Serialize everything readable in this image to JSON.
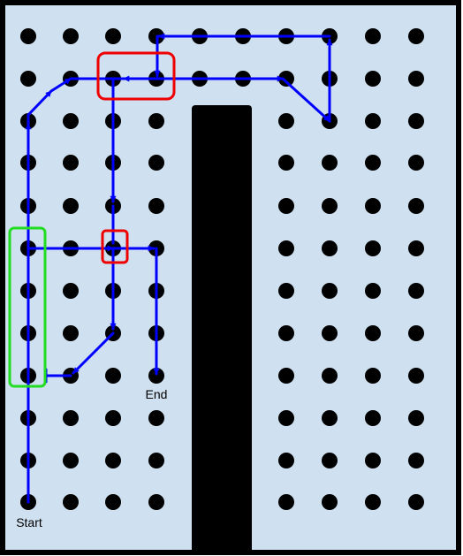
{
  "labels": {
    "start": "Start",
    "end": "End"
  },
  "colors": {
    "floor": "#cfe0f0",
    "border": "#000000",
    "dot": "#000000",
    "wall": "#000000",
    "path": "#0000ff",
    "highlight_red": "#ee0000",
    "highlight_green": "#22dd22"
  },
  "grid": {
    "columns": 10,
    "rows": 12
  }
}
